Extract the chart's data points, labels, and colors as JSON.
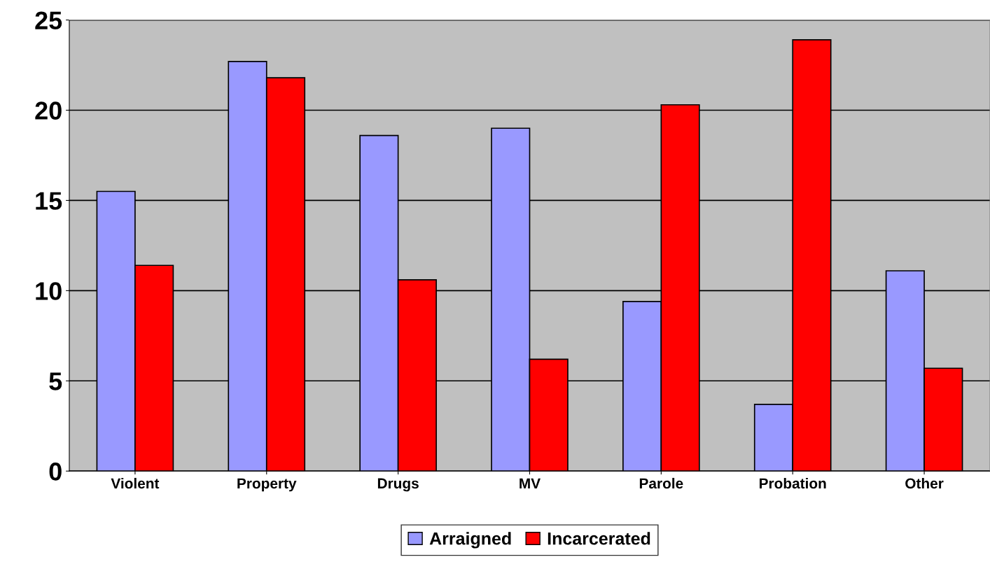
{
  "chart_data": {
    "type": "bar",
    "categories": [
      "Violent",
      "Property",
      "Drugs",
      "MV",
      "Parole",
      "Probation",
      "Other"
    ],
    "series": [
      {
        "name": "Arraigned",
        "color": "#9999ff",
        "values": [
          15.5,
          22.7,
          18.6,
          19.0,
          9.4,
          3.7,
          11.1
        ]
      },
      {
        "name": "Incarcerated",
        "color": "#ff0000",
        "values": [
          11.4,
          21.8,
          10.6,
          6.2,
          20.3,
          23.9,
          5.7
        ]
      }
    ],
    "ylim": [
      0,
      25
    ],
    "yticks": [
      0,
      5,
      10,
      15,
      20,
      25
    ],
    "grid": "y",
    "legend": "bottom"
  }
}
